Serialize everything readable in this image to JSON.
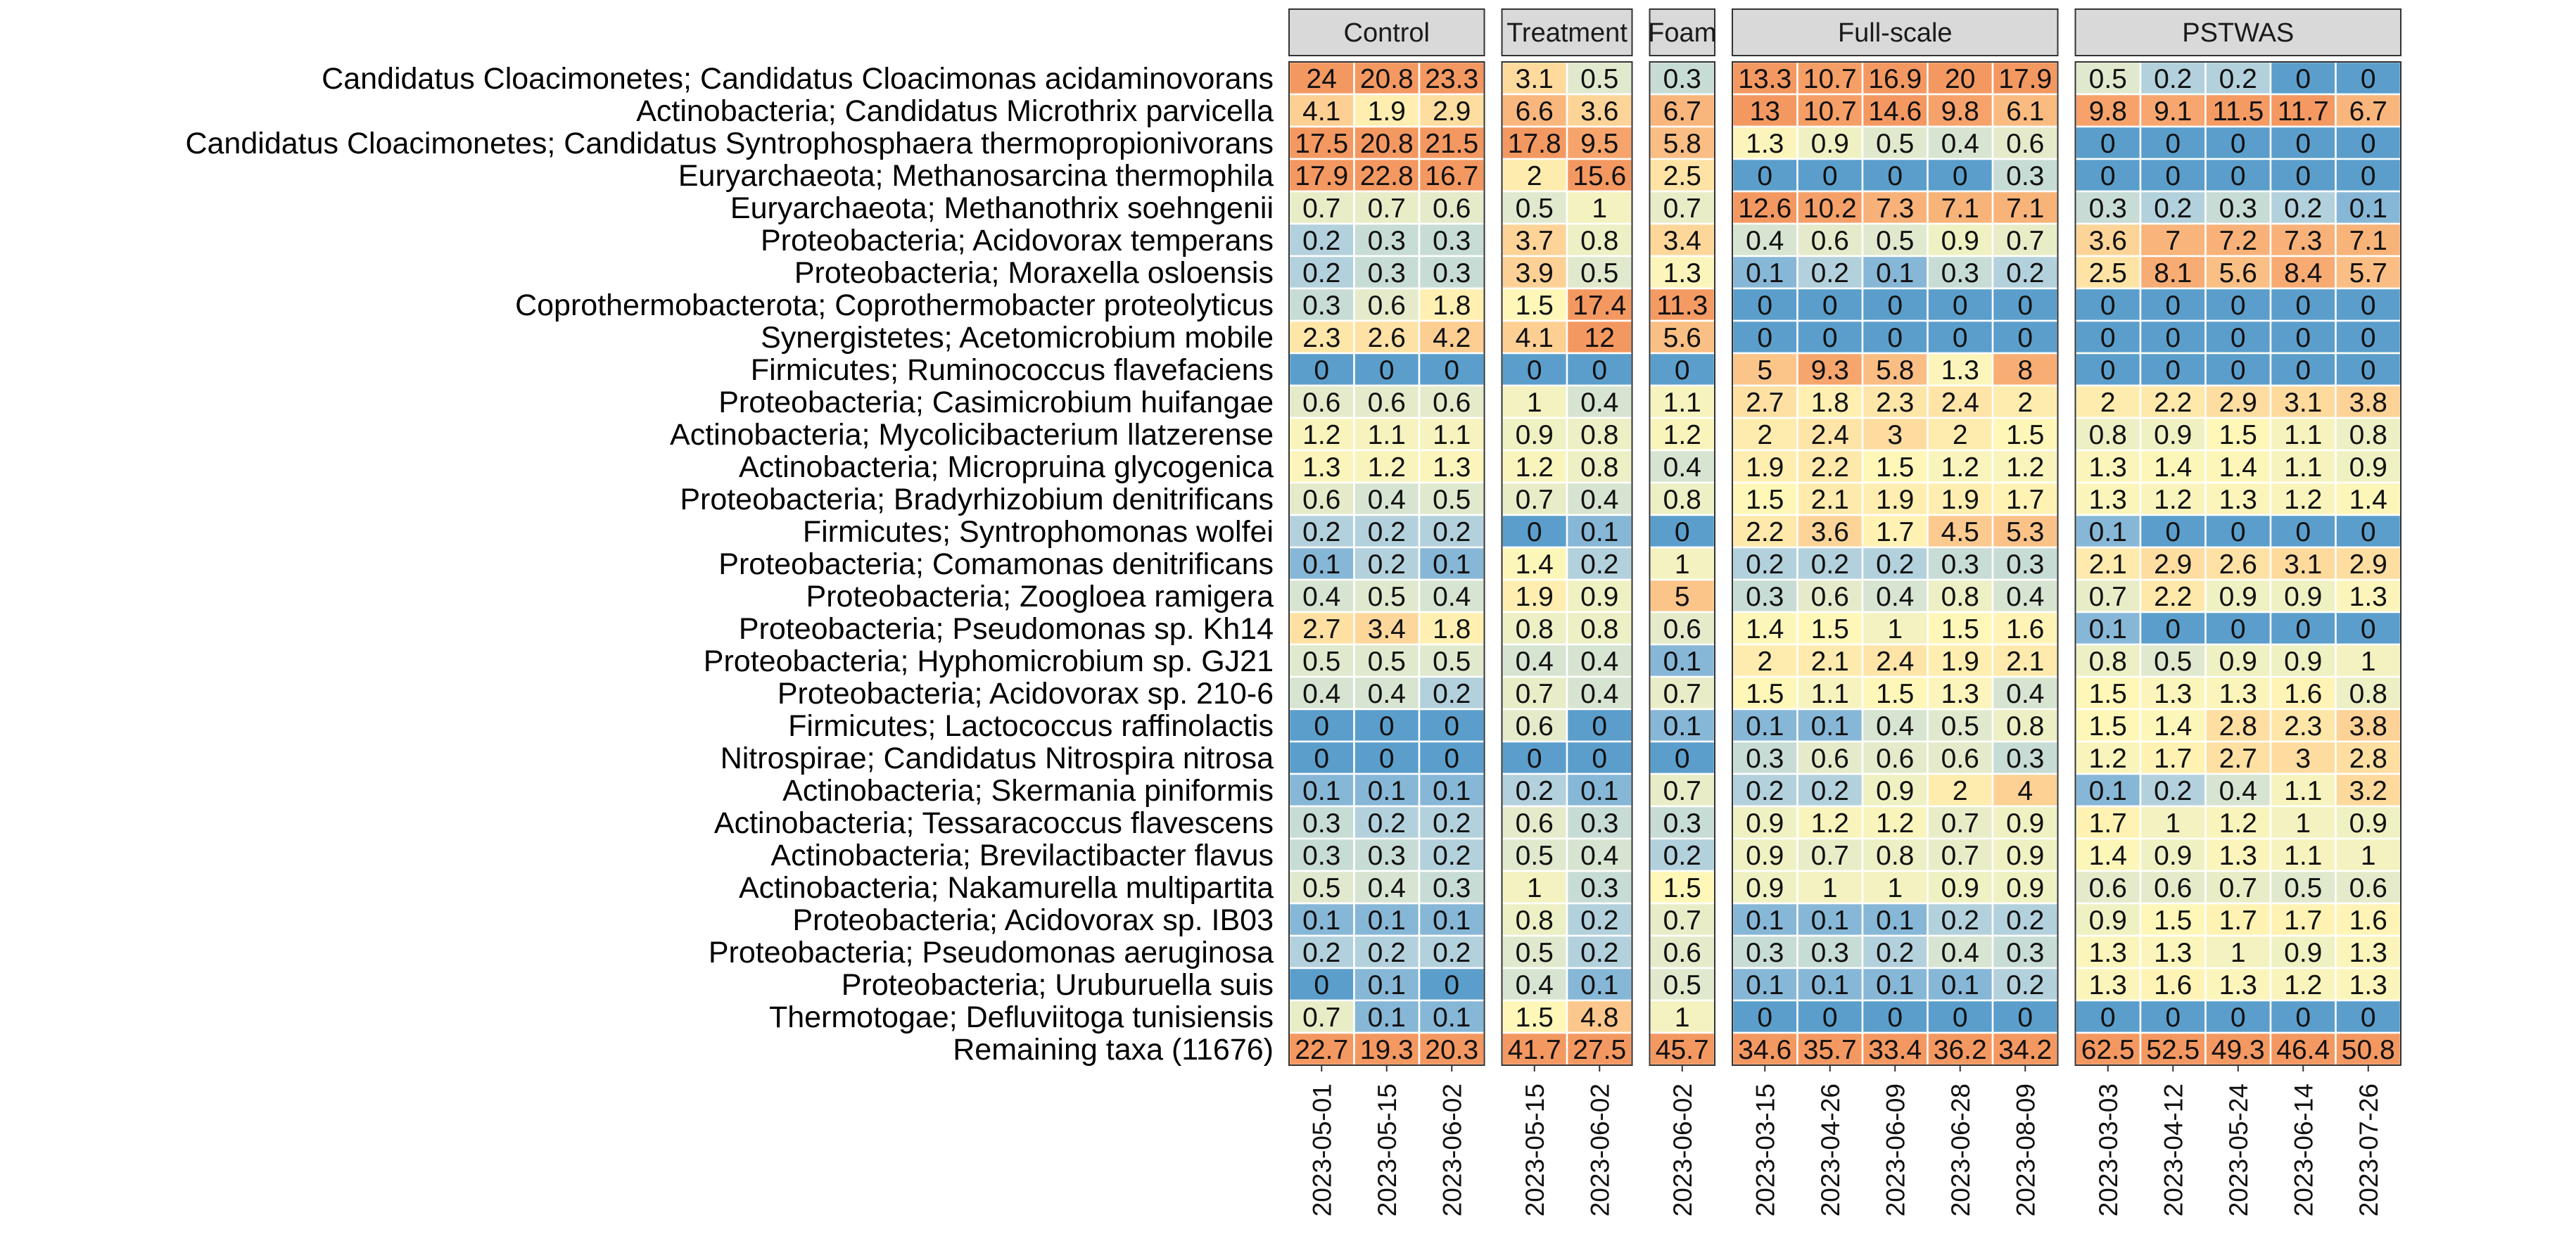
{
  "chart_data": {
    "type": "heatmap",
    "title": "",
    "xlabel": "",
    "ylabel": "",
    "rows": [
      "Candidatus Cloacimonetes; Candidatus Cloacimonas acidaminovorans",
      "Actinobacteria; Candidatus Microthrix parvicella",
      "Candidatus Cloacimonetes; Candidatus Syntrophosphaera thermopropionivorans",
      "Euryarchaeota; Methanosarcina thermophila",
      "Euryarchaeota; Methanothrix soehngenii",
      "Proteobacteria; Acidovorax temperans",
      "Proteobacteria; Moraxella osloensis",
      "Coprothermobacterota; Coprothermobacter proteolyticus",
      "Synergistetes; Acetomicrobium mobile",
      "Firmicutes; Ruminococcus flavefaciens",
      "Proteobacteria; Casimicrobium huifangae",
      "Actinobacteria; Mycolicibacterium llatzerense",
      "Actinobacteria; Micropruina glycogenica",
      "Proteobacteria; Bradyrhizobium denitrificans",
      "Firmicutes; Syntrophomonas wolfei",
      "Proteobacteria; Comamonas denitrificans",
      "Proteobacteria; Zoogloea ramigera",
      "Proteobacteria; Pseudomonas sp. Kh14",
      "Proteobacteria; Hyphomicrobium sp. GJ21",
      "Proteobacteria; Acidovorax sp. 210-6",
      "Firmicutes; Lactococcus raffinolactis",
      "Nitrospirae; Candidatus Nitrospira nitrosa",
      "Actinobacteria; Skermania piniformis",
      "Actinobacteria; Tessaracoccus flavescens",
      "Actinobacteria; Brevilactibacter flavus",
      "Actinobacteria; Nakamurella multipartita",
      "Proteobacteria; Acidovorax sp. IB03",
      "Proteobacteria; Pseudomonas aeruginosa",
      "Proteobacteria; Uruburuella suis",
      "Thermotogae; Defluviitoga tunisiensis",
      "Remaining taxa (11676)"
    ],
    "panels": [
      {
        "name": "Control",
        "columns": [
          "2023-05-01",
          "2023-05-15",
          "2023-06-02"
        ],
        "values": [
          [
            24,
            20.8,
            23.3
          ],
          [
            4.1,
            1.9,
            2.9
          ],
          [
            17.5,
            20.8,
            21.5
          ],
          [
            17.9,
            22.8,
            16.7
          ],
          [
            0.7,
            0.7,
            0.6
          ],
          [
            0.2,
            0.3,
            0.3
          ],
          [
            0.2,
            0.3,
            0.3
          ],
          [
            0.3,
            0.6,
            1.8
          ],
          [
            2.3,
            2.6,
            4.2
          ],
          [
            0,
            0,
            0
          ],
          [
            0.6,
            0.6,
            0.6
          ],
          [
            1.2,
            1.1,
            1.1
          ],
          [
            1.3,
            1.2,
            1.3
          ],
          [
            0.6,
            0.4,
            0.5
          ],
          [
            0.2,
            0.2,
            0.2
          ],
          [
            0.1,
            0.2,
            0.1
          ],
          [
            0.4,
            0.5,
            0.4
          ],
          [
            2.7,
            3.4,
            1.8
          ],
          [
            0.5,
            0.5,
            0.5
          ],
          [
            0.4,
            0.4,
            0.2
          ],
          [
            0,
            0,
            0
          ],
          [
            0,
            0,
            0
          ],
          [
            0.1,
            0.1,
            0.1
          ],
          [
            0.3,
            0.2,
            0.2
          ],
          [
            0.3,
            0.3,
            0.2
          ],
          [
            0.5,
            0.4,
            0.3
          ],
          [
            0.1,
            0.1,
            0.1
          ],
          [
            0.2,
            0.2,
            0.2
          ],
          [
            0,
            0.1,
            0
          ],
          [
            0.7,
            0.1,
            0.1
          ],
          [
            22.7,
            19.3,
            20.3
          ]
        ]
      },
      {
        "name": "Treatment",
        "columns": [
          "2023-05-15",
          "2023-06-02"
        ],
        "values": [
          [
            3.1,
            0.5
          ],
          [
            6.6,
            3.6
          ],
          [
            17.8,
            9.5
          ],
          [
            2,
            15.6
          ],
          [
            0.5,
            1
          ],
          [
            3.7,
            0.8
          ],
          [
            3.9,
            0.5
          ],
          [
            1.5,
            17.4
          ],
          [
            4.1,
            12
          ],
          [
            0,
            0
          ],
          [
            1,
            0.4
          ],
          [
            0.9,
            0.8
          ],
          [
            1.2,
            0.8
          ],
          [
            0.7,
            0.4
          ],
          [
            0,
            0.1
          ],
          [
            1.4,
            0.2
          ],
          [
            1.9,
            0.9
          ],
          [
            0.8,
            0.8
          ],
          [
            0.4,
            0.4
          ],
          [
            0.7,
            0.4
          ],
          [
            0.6,
            0
          ],
          [
            0,
            0
          ],
          [
            0.2,
            0.1
          ],
          [
            0.6,
            0.3
          ],
          [
            0.5,
            0.4
          ],
          [
            1,
            0.3
          ],
          [
            0.8,
            0.2
          ],
          [
            0.5,
            0.2
          ],
          [
            0.4,
            0.1
          ],
          [
            1.5,
            4.8
          ],
          [
            41.7,
            27.5
          ]
        ]
      },
      {
        "name": "Foam",
        "columns": [
          "2023-06-02"
        ],
        "values": [
          [
            0.3
          ],
          [
            6.7
          ],
          [
            5.8
          ],
          [
            2.5
          ],
          [
            0.7
          ],
          [
            3.4
          ],
          [
            1.3
          ],
          [
            11.3
          ],
          [
            5.6
          ],
          [
            0
          ],
          [
            1.1
          ],
          [
            1.2
          ],
          [
            0.4
          ],
          [
            0.8
          ],
          [
            0
          ],
          [
            1
          ],
          [
            5
          ],
          [
            0.6
          ],
          [
            0.1
          ],
          [
            0.7
          ],
          [
            0.1
          ],
          [
            0
          ],
          [
            0.7
          ],
          [
            0.3
          ],
          [
            0.2
          ],
          [
            1.5
          ],
          [
            0.7
          ],
          [
            0.6
          ],
          [
            0.5
          ],
          [
            1
          ],
          [
            45.7
          ]
        ]
      },
      {
        "name": "Full-scale",
        "columns": [
          "2023-03-15",
          "2023-04-26",
          "2023-06-09",
          "2023-06-28",
          "2023-08-09"
        ],
        "values": [
          [
            13.3,
            10.7,
            16.9,
            20,
            17.9
          ],
          [
            13,
            10.7,
            14.6,
            9.8,
            6.1
          ],
          [
            1.3,
            0.9,
            0.5,
            0.4,
            0.6
          ],
          [
            0,
            0,
            0,
            0,
            0.3
          ],
          [
            12.6,
            10.2,
            7.3,
            7.1,
            7.1
          ],
          [
            0.4,
            0.6,
            0.5,
            0.9,
            0.7
          ],
          [
            0.1,
            0.2,
            0.1,
            0.3,
            0.2
          ],
          [
            0,
            0,
            0,
            0,
            0
          ],
          [
            0,
            0,
            0,
            0,
            0
          ],
          [
            5,
            9.3,
            5.8,
            1.3,
            8
          ],
          [
            2.7,
            1.8,
            2.3,
            2.4,
            2
          ],
          [
            2,
            2.4,
            3,
            2,
            1.5
          ],
          [
            1.9,
            2.2,
            1.5,
            1.2,
            1.2
          ],
          [
            1.5,
            2.1,
            1.9,
            1.9,
            1.7
          ],
          [
            2.2,
            3.6,
            1.7,
            4.5,
            5.3
          ],
          [
            0.2,
            0.2,
            0.2,
            0.3,
            0.3
          ],
          [
            0.3,
            0.6,
            0.4,
            0.8,
            0.4
          ],
          [
            1.4,
            1.5,
            1,
            1.5,
            1.6
          ],
          [
            2,
            2.1,
            2.4,
            1.9,
            2.1
          ],
          [
            1.5,
            1.1,
            1.5,
            1.3,
            0.4
          ],
          [
            0.1,
            0.1,
            0.4,
            0.5,
            0.8
          ],
          [
            0.3,
            0.6,
            0.6,
            0.6,
            0.3
          ],
          [
            0.2,
            0.2,
            0.9,
            2,
            4
          ],
          [
            0.9,
            1.2,
            1.2,
            0.7,
            0.9
          ],
          [
            0.9,
            0.7,
            0.8,
            0.7,
            0.9
          ],
          [
            0.9,
            1,
            1,
            0.9,
            0.9
          ],
          [
            0.1,
            0.1,
            0.1,
            0.2,
            0.2
          ],
          [
            0.3,
            0.3,
            0.2,
            0.4,
            0.3
          ],
          [
            0.1,
            0.1,
            0.1,
            0.1,
            0.2
          ],
          [
            0,
            0,
            0,
            0,
            0
          ],
          [
            34.6,
            35.7,
            33.4,
            36.2,
            34.2
          ]
        ]
      },
      {
        "name": "PSTWAS",
        "columns": [
          "2023-03-03",
          "2023-04-12",
          "2023-05-24",
          "2023-06-14",
          "2023-07-26"
        ],
        "values": [
          [
            0.5,
            0.2,
            0.2,
            0,
            0
          ],
          [
            9.8,
            9.1,
            11.5,
            11.7,
            6.7
          ],
          [
            0,
            0,
            0,
            0,
            0
          ],
          [
            0,
            0,
            0,
            0,
            0
          ],
          [
            0.3,
            0.2,
            0.3,
            0.2,
            0.1
          ],
          [
            3.6,
            7,
            7.2,
            7.3,
            7.1
          ],
          [
            2.5,
            8.1,
            5.6,
            8.4,
            5.7
          ],
          [
            0,
            0,
            0,
            0,
            0
          ],
          [
            0,
            0,
            0,
            0,
            0
          ],
          [
            0,
            0,
            0,
            0,
            0
          ],
          [
            2,
            2.2,
            2.9,
            3.1,
            3.8
          ],
          [
            0.8,
            0.9,
            1.5,
            1.1,
            0.8
          ],
          [
            1.3,
            1.4,
            1.4,
            1.1,
            0.9
          ],
          [
            1.3,
            1.2,
            1.3,
            1.2,
            1.4
          ],
          [
            0.1,
            0,
            0,
            0,
            0
          ],
          [
            2.1,
            2.9,
            2.6,
            3.1,
            2.9
          ],
          [
            0.7,
            2.2,
            0.9,
            0.9,
            1.3
          ],
          [
            0.1,
            0,
            0,
            0,
            0
          ],
          [
            0.8,
            0.5,
            0.9,
            0.9,
            1
          ],
          [
            1.5,
            1.3,
            1.3,
            1.6,
            0.8
          ],
          [
            1.5,
            1.4,
            2.8,
            2.3,
            3.8
          ],
          [
            1.2,
            1.7,
            2.7,
            3,
            2.8
          ],
          [
            0.1,
            0.2,
            0.4,
            1.1,
            3.2
          ],
          [
            1.7,
            1,
            1.2,
            1,
            0.9
          ],
          [
            1.4,
            0.9,
            1.3,
            1.1,
            1
          ],
          [
            0.6,
            0.6,
            0.7,
            0.5,
            0.6
          ],
          [
            0.9,
            1.5,
            1.7,
            1.7,
            1.6
          ],
          [
            1.3,
            1.3,
            1,
            0.9,
            1.3
          ],
          [
            1.3,
            1.6,
            1.3,
            1.2,
            1.3
          ],
          [
            0,
            0,
            0,
            0,
            0
          ],
          [
            62.5,
            52.5,
            49.3,
            46.4,
            50.8
          ]
        ]
      }
    ],
    "colors": {
      "zero": "#5b9ecb",
      "low": "#a6c9e0",
      "mid_low": "#dde8cf",
      "mid": "#fff7b8",
      "mid_high": "#fdd094",
      "high": "#f49861",
      "strip_fill": "#d9d9d9",
      "strip_border": "#333333",
      "panel_border": "#333333",
      "cell_border": "#ffffff"
    }
  }
}
